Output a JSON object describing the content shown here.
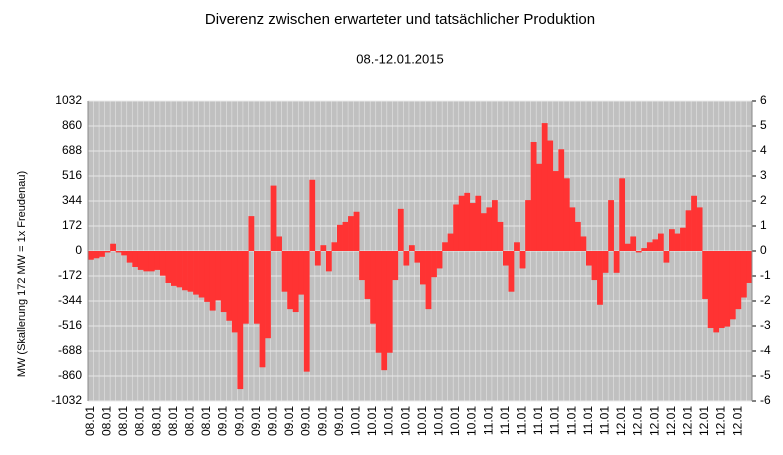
{
  "chart_data": {
    "type": "bar",
    "title": "Diverenz zwischen erwarteter und tatsächlicher Produktion",
    "subtitle": "08.-12.01.2015",
    "y_label": "MW (Skallerung 172 MW = 1x Freudenau)",
    "color": "#ff3333",
    "categories": [
      "08.01",
      null,
      null,
      "08.01",
      null,
      null,
      "08.01",
      null,
      null,
      "08.01",
      null,
      null,
      "08.01",
      null,
      null,
      "08.01",
      null,
      null,
      "08.01",
      null,
      null,
      "08.01",
      null,
      null,
      "09.01",
      null,
      null,
      "09.01",
      null,
      null,
      "09.01",
      null,
      null,
      "09.01",
      null,
      null,
      "09.01",
      null,
      null,
      "09.01",
      null,
      null,
      "09.01",
      null,
      null,
      "09.01",
      null,
      null,
      "10.01",
      null,
      null,
      "10.01",
      null,
      null,
      "10.01",
      null,
      null,
      "10.01",
      null,
      null,
      "10.01",
      null,
      null,
      "10.01",
      null,
      null,
      "10.01",
      null,
      null,
      "10.01",
      null,
      null,
      "11.01",
      null,
      null,
      "11.01",
      null,
      null,
      "11.01",
      null,
      null,
      "11.01",
      null,
      null,
      "11.01",
      null,
      null,
      "11.01",
      null,
      null,
      "11.01",
      null,
      null,
      "11.01",
      null,
      null,
      "12.01",
      null,
      null,
      "12.01",
      null,
      null,
      "12.01",
      null,
      null,
      "12.01",
      null,
      null,
      "12.01",
      null,
      null,
      "12.01",
      null,
      null,
      "12.01",
      null,
      null,
      "12.01",
      null,
      null
    ],
    "values": [
      -60,
      -50,
      -40,
      -10,
      50,
      -10,
      -30,
      -80,
      -110,
      -130,
      -140,
      -140,
      -130,
      -170,
      -220,
      -240,
      -250,
      -270,
      -280,
      -300,
      -320,
      -350,
      -410,
      -340,
      -420,
      -480,
      -560,
      -950,
      -500,
      240,
      -500,
      -800,
      -600,
      450,
      100,
      -280,
      -400,
      -420,
      -300,
      -830,
      490,
      -100,
      40,
      -140,
      60,
      180,
      200,
      240,
      270,
      -200,
      -330,
      -500,
      -700,
      -820,
      -700,
      -200,
      290,
      -100,
      40,
      -80,
      -230,
      -400,
      -180,
      -120,
      60,
      120,
      320,
      380,
      400,
      330,
      380,
      260,
      300,
      350,
      200,
      -100,
      -280,
      60,
      -120,
      350,
      750,
      600,
      880,
      760,
      550,
      700,
      500,
      300,
      200,
      100,
      -100,
      -200,
      -370,
      -150,
      350,
      -150,
      500,
      50,
      100,
      -10,
      20,
      60,
      80,
      120,
      -80,
      150,
      120,
      160,
      280,
      380,
      300,
      -330,
      -530,
      -560,
      -530,
      -520,
      -470,
      -400,
      -320,
      -220
    ],
    "ylim": [
      -1032,
      1032
    ],
    "yticks": [
      -1032,
      -860,
      -688,
      -516,
      -344,
      -172,
      0,
      172,
      344,
      516,
      688,
      860,
      1032
    ],
    "y2lim": [
      -6,
      6
    ],
    "y2ticks": [
      -6,
      -5,
      -4,
      -3,
      -2,
      -1,
      0,
      1,
      2,
      3,
      4,
      5,
      6
    ],
    "grid": true
  }
}
